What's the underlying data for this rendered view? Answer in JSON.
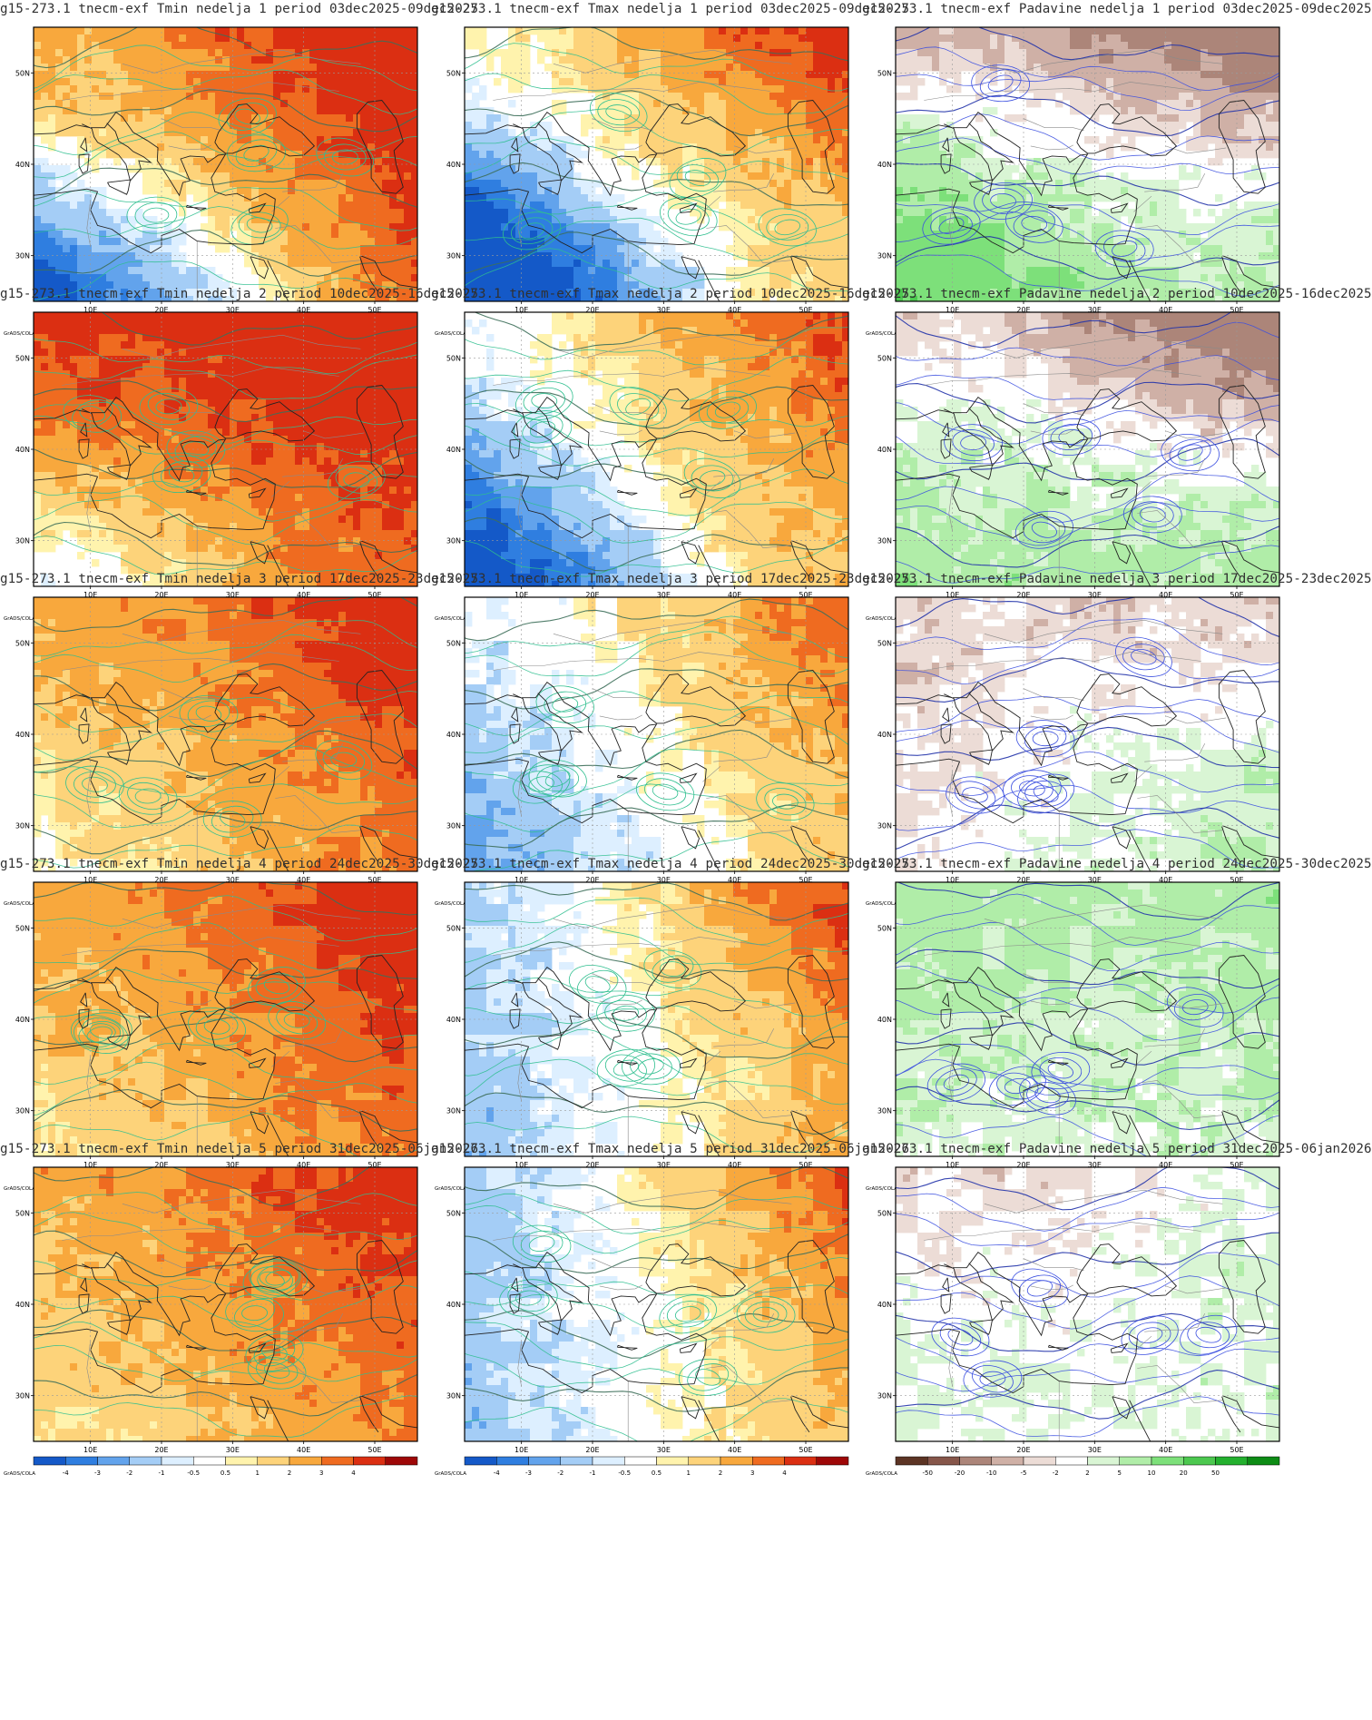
{
  "credit": "GrADS/COLA",
  "axes": {
    "lon_labels": [
      "10E",
      "20E",
      "30E",
      "40E",
      "50E"
    ],
    "lat_labels": [
      "50N",
      "40N",
      "30N"
    ]
  },
  "colorbars": {
    "temperature": {
      "labels": [
        "-4",
        "-3",
        "-2",
        "-1",
        "-0.5",
        "0.5",
        "1",
        "2",
        "3",
        "4"
      ],
      "colors": [
        "#1459c8",
        "#2f7ee0",
        "#62a3ec",
        "#a4cdf6",
        "#ddefff",
        "#ffffff",
        "#fff3ad",
        "#fdd37a",
        "#f8a83d",
        "#ef6b20",
        "#db2f12",
        "#9e0707"
      ]
    },
    "precipitation": {
      "labels": [
        "-50",
        "-20",
        "-10",
        "-5",
        "-2",
        "2",
        "5",
        "10",
        "20",
        "50"
      ],
      "colors": [
        "#5c3424",
        "#86564a",
        "#ac8579",
        "#cfb0a6",
        "#ecdcd6",
        "#ffffff",
        "#d9f5d4",
        "#b0eda8",
        "#7de07a",
        "#4cc84f",
        "#23b02e",
        "#0d8c15"
      ]
    }
  },
  "rows": [
    {
      "week": "1",
      "period": "03dec2025-09dec2025"
    },
    {
      "week": "2",
      "period": "10dec2025-16dec2025"
    },
    {
      "week": "3",
      "period": "17dec2025-23dec2025"
    },
    {
      "week": "4",
      "period": "24dec2025-30dec2025"
    },
    {
      "week": "5",
      "period": "31dec2025-06jan2026"
    }
  ],
  "panels": [
    {
      "title": "g15-273.1 tnecm-exf Tmin nedelja 1 period 03dec2025-09dec2025",
      "variable": "Tmin",
      "week": 1,
      "colorbar": "temperature",
      "anomaly": {
        "base": 1.6,
        "west": -0.5,
        "east": 2.8,
        "north": 1.2,
        "south": -1.0,
        "sw": -3.2,
        "ne": 0.6
      }
    },
    {
      "title": "g15-273.1 tnecm-exf Tmax nedelja 1 period 03dec2025-09dec2025",
      "variable": "Tmax",
      "week": 1,
      "colorbar": "temperature",
      "anomaly": {
        "base": 0.6,
        "west": -1.8,
        "east": 1.4,
        "north": 1.6,
        "south": -0.6,
        "sw": -3.6,
        "ne": 0.9
      }
    },
    {
      "title": "g15-273.1 tnecm-exf Padavine nedelja 1 period 03dec2025-09dec2025",
      "variable": "Padavine",
      "week": 1,
      "colorbar": "precipitation",
      "anomaly": {
        "base": 2,
        "west": 5,
        "east": 3,
        "north": -12,
        "south": 2,
        "sw": 6,
        "ne": -6
      }
    },
    {
      "title": "g15-273.1 tnecm-exf Tmin nedelja 2 period 10dec2025-16dec2025",
      "variable": "Tmin",
      "week": 2,
      "colorbar": "temperature",
      "anomaly": {
        "base": 3.2,
        "west": 0.2,
        "east": 1.2,
        "north": 1.0,
        "south": -0.8,
        "sw": -2.0,
        "ne": 0.5
      }
    },
    {
      "title": "g15-273.1 tnecm-exf Tmax nedelja 2 period 10dec2025-16dec2025",
      "variable": "Tmax",
      "week": 2,
      "colorbar": "temperature",
      "anomaly": {
        "base": 1.0,
        "west": -2.0,
        "east": 1.6,
        "north": 0.8,
        "south": -0.6,
        "sw": -2.8,
        "ne": 0.6
      }
    },
    {
      "title": "g15-273.1 tnecm-exf Padavine nedelja 2 period 10dec2025-16dec2025",
      "variable": "Padavine",
      "week": 2,
      "colorbar": "precipitation",
      "anomaly": {
        "base": 2,
        "west": 3,
        "east": 3,
        "north": -8,
        "south": 3,
        "sw": 1,
        "ne": -10
      }
    },
    {
      "title": "g15-273.1 tnecm-exf Tmin nedelja 3 period 17dec2025-23dec2025",
      "variable": "Tmin",
      "week": 3,
      "colorbar": "temperature",
      "anomaly": {
        "base": 2.0,
        "west": -0.4,
        "east": 1.8,
        "north": 0.8,
        "south": -0.3,
        "sw": -0.6,
        "ne": 0.6
      }
    },
    {
      "title": "g15-273.1 tnecm-exf Tmax nedelja 3 period 17dec2025-23dec2025",
      "variable": "Tmax",
      "week": 3,
      "colorbar": "temperature",
      "anomaly": {
        "base": 0.4,
        "west": -1.4,
        "east": 1.8,
        "north": 0.4,
        "south": -0.5,
        "sw": -0.8,
        "ne": 0.8
      }
    },
    {
      "title": "g15-273.1 tnecm-exf Padavine nedelja 3 period 17dec2025-23dec2025",
      "variable": "Padavine",
      "week": 3,
      "colorbar": "precipitation",
      "anomaly": {
        "base": 1,
        "west": -3,
        "east": 4,
        "north": -3,
        "south": 1,
        "sw": 0,
        "ne": -4
      }
    },
    {
      "title": "g15-273.1 tnecm-exf Tmin nedelja 4 period 24dec2025-30dec2025",
      "variable": "Tmin",
      "week": 4,
      "colorbar": "temperature",
      "anomaly": {
        "base": 2.6,
        "west": -0.6,
        "east": 1.4,
        "north": 0.4,
        "south": -0.6,
        "sw": -0.4,
        "ne": 0.6
      }
    },
    {
      "title": "g15-273.1 tnecm-exf Tmax nedelja 4 period 24dec2025-30dec2025",
      "variable": "Tmax",
      "week": 4,
      "colorbar": "temperature",
      "anomaly": {
        "base": 0.2,
        "west": -1.6,
        "east": 2.2,
        "north": 0.2,
        "south": 0.0,
        "sw": -0.2,
        "ne": 1.2
      }
    },
    {
      "title": "g15-273.1 tnecm-exf Padavine nedelja 4 period 24dec2025-30dec2025",
      "variable": "Padavine",
      "week": 4,
      "colorbar": "precipitation",
      "anomaly": {
        "base": 3,
        "west": 3,
        "east": 2,
        "north": 2,
        "south": -1,
        "sw": -1,
        "ne": 1
      }
    },
    {
      "title": "g15-273.1 tnecm-exf Tmin nedelja 5 period 31dec2025-06jan2026",
      "variable": "Tmin",
      "week": 5,
      "colorbar": "temperature",
      "anomaly": {
        "base": 2.4,
        "west": -0.5,
        "east": 1.2,
        "north": 0.6,
        "south": -0.4,
        "sw": -0.4,
        "ne": 0.5
      }
    },
    {
      "title": "g15-273.1 tnecm-exf Tmax nedelja 5 period 31dec2025-06jan2026",
      "variable": "Tmax",
      "week": 5,
      "colorbar": "temperature",
      "anomaly": {
        "base": 0.2,
        "west": -1.6,
        "east": 2.0,
        "north": 0.0,
        "south": -0.2,
        "sw": 0.0,
        "ne": 1.2
      }
    },
    {
      "title": "g15-273.1 tnecm-exf Padavine nedelja 5 period 31dec2025-06jan2026",
      "variable": "Padavine",
      "week": 5,
      "colorbar": "precipitation",
      "anomaly": {
        "base": 1,
        "west": 1,
        "east": 3,
        "north": -5,
        "south": -1,
        "sw": 1,
        "ne": 2
      }
    }
  ]
}
